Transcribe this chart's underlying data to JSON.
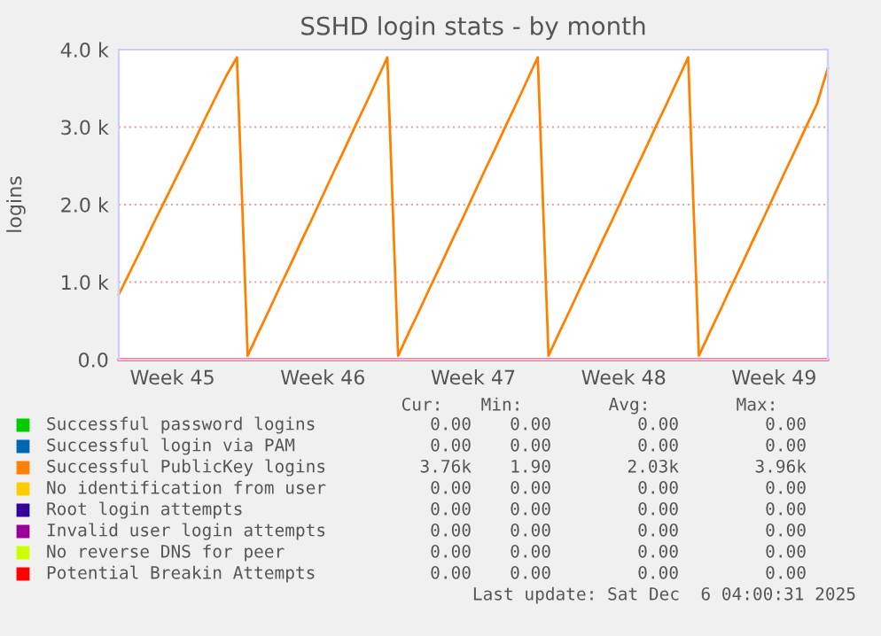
{
  "chart_data": {
    "type": "line",
    "title": "SSHD login stats - by month",
    "ylabel": "logins",
    "categories": [
      null,
      null,
      null,
      null,
      null,
      "Week 45",
      null,
      null,
      null,
      null,
      null,
      null,
      null,
      null,
      null,
      null,
      null,
      null,
      null,
      "Week 46",
      null,
      null,
      null,
      null,
      null,
      null,
      null,
      null,
      null,
      null,
      null,
      null,
      null,
      "Week 47",
      null,
      null,
      null,
      null,
      null,
      null,
      null,
      null,
      null,
      null,
      null,
      null,
      null,
      "Week 48",
      null,
      null,
      null,
      null,
      null,
      null,
      null,
      null,
      null,
      null,
      null,
      null,
      null,
      "Week 49",
      null,
      null,
      null,
      null,
      null
    ],
    "ylim": [
      0,
      4000
    ],
    "yticks": [
      {
        "value": 0,
        "label": "0.0"
      },
      {
        "value": 1000,
        "label": "1.0 k"
      },
      {
        "value": 2000,
        "label": "2.0 k"
      },
      {
        "value": 3000,
        "label": "3.0 k"
      },
      {
        "value": 4000,
        "label": "4.0 k"
      }
    ],
    "grid": "y",
    "legend": "bottom",
    "series": [
      {
        "name": "Successful password logins",
        "color": "#00cc00",
        "values": [
          null,
          null,
          null,
          null,
          null,
          null,
          null,
          null,
          null,
          null,
          null,
          null,
          null,
          null,
          null,
          null,
          null,
          null,
          null,
          null,
          null,
          null,
          null,
          null,
          null,
          null,
          null,
          null,
          null,
          null,
          null,
          null,
          null,
          null,
          null,
          null,
          null,
          null,
          null,
          null,
          null,
          null,
          null,
          null,
          null,
          null,
          null,
          null,
          null,
          null,
          null,
          null,
          null,
          null,
          null,
          null,
          null,
          null,
          null,
          null,
          null,
          null,
          null,
          null,
          null,
          null,
          null
        ]
      },
      {
        "name": "Successful login via PAM",
        "color": "#0066b3",
        "values": [
          null,
          null,
          null,
          null,
          null,
          null,
          null,
          null,
          null,
          null,
          null,
          null,
          null,
          null,
          null,
          null,
          null,
          null,
          null,
          null,
          null,
          null,
          null,
          null,
          null,
          null,
          null,
          null,
          null,
          null,
          null,
          null,
          null,
          null,
          null,
          null,
          null,
          null,
          null,
          null,
          null,
          null,
          null,
          null,
          null,
          null,
          null,
          null,
          null,
          null,
          null,
          null,
          null,
          null,
          null,
          null,
          null,
          null,
          null,
          null,
          null,
          null,
          null,
          null,
          null,
          null,
          null
        ]
      },
      {
        "name": "Successful PublicKey logins",
        "color": "#ff8000",
        "values": [
          840,
          1120,
          1400,
          1690,
          1970,
          2250,
          2530,
          2810,
          3100,
          3380,
          3660,
          3900,
          50,
          350,
          640,
          940,
          1230,
          1530,
          1820,
          2120,
          2420,
          2710,
          3010,
          3300,
          3600,
          3900,
          50,
          350,
          640,
          940,
          1230,
          1530,
          1820,
          2120,
          2420,
          2710,
          3010,
          3300,
          3600,
          3900,
          50,
          350,
          640,
          940,
          1230,
          1530,
          1820,
          2120,
          2420,
          2710,
          3010,
          3300,
          3600,
          3900,
          50,
          350,
          640,
          940,
          1230,
          1530,
          1820,
          2120,
          2420,
          2710,
          3010,
          3300,
          3760
        ]
      },
      {
        "name": "No identification from user",
        "color": "#ffcc00",
        "values": [
          null,
          null,
          null,
          null,
          null,
          null,
          null,
          null,
          null,
          null,
          null,
          null,
          null,
          null,
          null,
          null,
          null,
          null,
          null,
          null,
          null,
          null,
          null,
          null,
          null,
          null,
          null,
          null,
          null,
          null,
          null,
          null,
          null,
          null,
          null,
          null,
          null,
          null,
          null,
          null,
          null,
          null,
          null,
          null,
          null,
          null,
          null,
          null,
          null,
          null,
          null,
          null,
          null,
          null,
          null,
          null,
          null,
          null,
          null,
          null,
          null,
          null,
          null,
          null,
          null,
          null,
          null
        ]
      },
      {
        "name": "Root login attempts",
        "color": "#330099",
        "values": [
          null,
          null,
          null,
          null,
          null,
          null,
          null,
          null,
          null,
          null,
          null,
          null,
          null,
          null,
          null,
          null,
          null,
          null,
          null,
          null,
          null,
          null,
          null,
          null,
          null,
          null,
          null,
          null,
          null,
          null,
          null,
          null,
          null,
          null,
          null,
          null,
          null,
          null,
          null,
          null,
          null,
          null,
          null,
          null,
          null,
          null,
          null,
          null,
          null,
          null,
          null,
          null,
          null,
          null,
          null,
          null,
          null,
          null,
          null,
          null,
          null,
          null,
          null,
          null,
          null,
          null,
          null
        ]
      },
      {
        "name": "Invalid user login attempts",
        "color": "#990099",
        "values": [
          null,
          null,
          null,
          null,
          null,
          null,
          null,
          null,
          null,
          null,
          null,
          null,
          null,
          null,
          null,
          null,
          null,
          null,
          null,
          null,
          null,
          null,
          null,
          null,
          null,
          null,
          null,
          null,
          null,
          null,
          null,
          null,
          null,
          null,
          null,
          null,
          null,
          null,
          null,
          null,
          null,
          null,
          null,
          null,
          null,
          null,
          null,
          null,
          null,
          null,
          null,
          null,
          null,
          null,
          null,
          null,
          null,
          null,
          null,
          null,
          null,
          null,
          null,
          null,
          null,
          null,
          null
        ]
      },
      {
        "name": "No reverse DNS for peer",
        "color": "#ccff00",
        "values": [
          null,
          null,
          null,
          null,
          null,
          null,
          null,
          null,
          null,
          null,
          null,
          null,
          null,
          null,
          null,
          null,
          null,
          null,
          null,
          null,
          null,
          null,
          null,
          null,
          null,
          null,
          null,
          null,
          null,
          null,
          null,
          null,
          null,
          null,
          null,
          null,
          null,
          null,
          null,
          null,
          null,
          null,
          null,
          null,
          null,
          null,
          null,
          null,
          null,
          null,
          null,
          null,
          null,
          null,
          null,
          null,
          null,
          null,
          null,
          null,
          null,
          null,
          null,
          null,
          null,
          null,
          null
        ]
      },
      {
        "name": "Potential Breakin Attempts",
        "color": "#ff0000",
        "values": [
          0,
          0,
          0,
          0,
          0,
          0,
          0,
          0,
          0,
          0,
          0,
          0,
          0,
          0,
          0,
          0,
          0,
          0,
          0,
          0,
          0,
          0,
          0,
          0,
          0,
          0,
          0,
          0,
          0,
          0,
          0,
          0,
          0,
          0,
          0,
          0,
          0,
          0,
          0,
          0,
          0,
          0,
          0,
          0,
          0,
          0,
          0,
          0,
          0,
          0,
          0,
          0,
          0,
          0,
          0,
          0,
          0,
          0,
          0,
          0,
          0,
          0,
          0,
          0,
          0,
          0,
          0
        ]
      }
    ],
    "annotations": [
      "Cur:",
      "Min:",
      "Avg:",
      "Max:",
      "0.00",
      "0.00",
      "0.00",
      "0.00",
      "0.00",
      "0.00",
      "0.00",
      "0.00",
      "3.76k",
      "1.90",
      "2.03k",
      "3.96k",
      "0.00",
      "0.00",
      "0.00",
      "0.00",
      "0.00",
      "0.00",
      "0.00",
      "0.00",
      "0.00",
      "0.00",
      "0.00",
      "0.00",
      "0.00",
      "0.00",
      "0.00",
      "0.00",
      "0.00",
      "0.00",
      "0.00",
      "0.00",
      "Last update: Sat Dec  6 04:00:31 2025"
    ]
  }
}
